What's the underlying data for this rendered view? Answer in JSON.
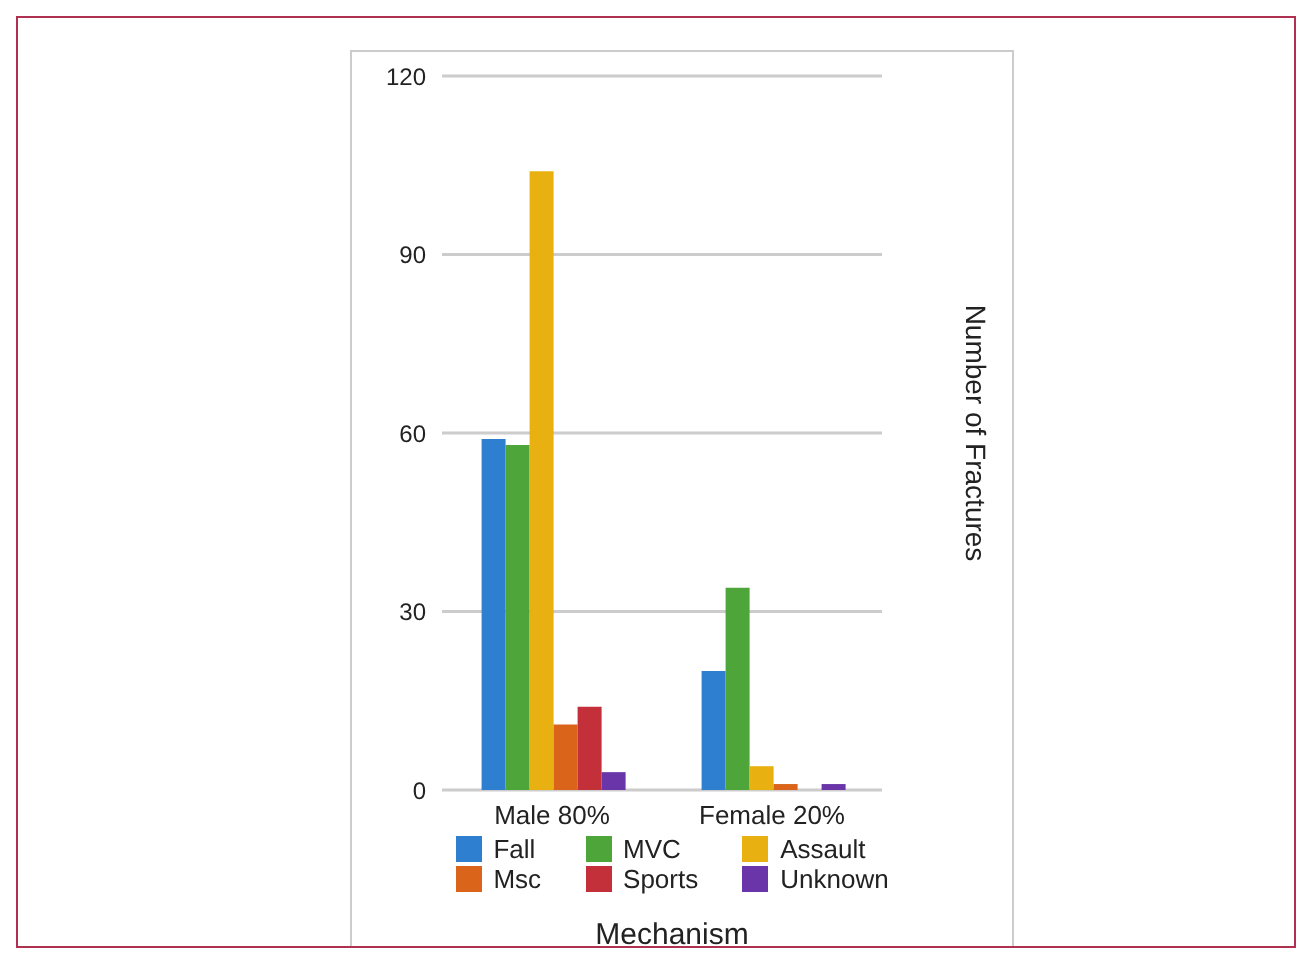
{
  "chart_data": {
    "type": "bar",
    "xlabel": "Mechanism",
    "ylabel": "Number of Fractures",
    "categories": [
      "Male 80%",
      "Female 20%"
    ],
    "series": [
      {
        "name": "Fall",
        "color": "#2f7fd0",
        "values": [
          59,
          20
        ]
      },
      {
        "name": "MVC",
        "color": "#4ea63a",
        "values": [
          58,
          34
        ]
      },
      {
        "name": "Assault",
        "color": "#e8b010",
        "values": [
          104,
          4
        ]
      },
      {
        "name": "Msc",
        "color": "#d9641a",
        "values": [
          11,
          1
        ]
      },
      {
        "name": "Sports",
        "color": "#c4303a",
        "values": [
          14,
          0
        ]
      },
      {
        "name": "Unknown",
        "color": "#6a35a8",
        "values": [
          3,
          1
        ]
      }
    ],
    "ylim": [
      0,
      120
    ],
    "yticks": [
      0,
      30,
      60,
      90,
      120
    ],
    "grid": "y",
    "legend": "bottom"
  }
}
